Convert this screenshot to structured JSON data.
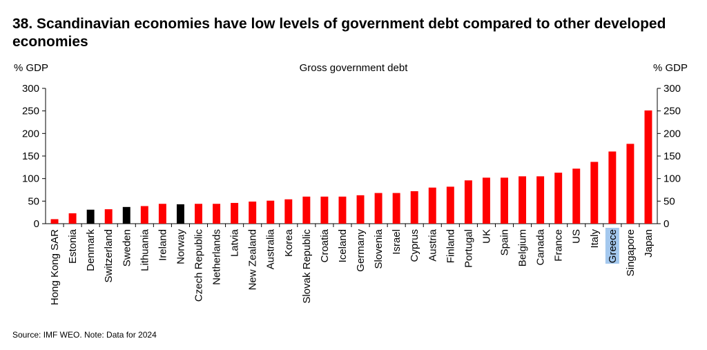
{
  "title": "38. Scandinavian economies have low levels of government debt compared to other developed economies",
  "source": "Source: IMF WEO. Note: Data for 2024",
  "chart_data": {
    "type": "bar",
    "title": "Gross government debt",
    "ylabel_left": "% GDP",
    "ylabel_right": "% GDP",
    "ylim": [
      0,
      300
    ],
    "yticks": [
      0,
      50,
      100,
      150,
      200,
      250,
      300
    ],
    "grid": false,
    "categories": [
      "Hong Kong SAR",
      "Estonia",
      "Denmark",
      "Switzerland",
      "Sweden",
      "Lithuania",
      "Ireland",
      "Norway",
      "Czech Republic",
      "Netherlands",
      "Latvia",
      "New Zealand",
      "Australia",
      "Korea",
      "Slovak Republic",
      "Croatia",
      "Iceland",
      "Germany",
      "Slovenia",
      "Israel",
      "Cyprus",
      "Austria",
      "Finland",
      "Portugal",
      "UK",
      "Spain",
      "Belgium",
      "Canada",
      "France",
      "US",
      "Italy",
      "Greece",
      "Singapore",
      "Japan"
    ],
    "values": [
      10,
      23,
      31,
      32,
      37,
      39,
      44,
      43,
      44,
      44,
      46,
      49,
      51,
      54,
      60,
      60,
      60,
      63,
      68,
      68,
      72,
      80,
      82,
      96,
      102,
      102,
      105,
      105,
      113,
      122,
      137,
      160,
      177,
      251
    ],
    "bar_colors": [
      "#ff0000",
      "#ff0000",
      "#000000",
      "#ff0000",
      "#000000",
      "#ff0000",
      "#ff0000",
      "#000000",
      "#ff0000",
      "#ff0000",
      "#ff0000",
      "#ff0000",
      "#ff0000",
      "#ff0000",
      "#ff0000",
      "#ff0000",
      "#ff0000",
      "#ff0000",
      "#ff0000",
      "#ff0000",
      "#ff0000",
      "#ff0000",
      "#ff0000",
      "#ff0000",
      "#ff0000",
      "#ff0000",
      "#ff0000",
      "#ff0000",
      "#ff0000",
      "#ff0000",
      "#ff0000",
      "#ff0000",
      "#ff0000",
      "#ff0000"
    ],
    "highlighted_label": "Greece",
    "highlight_color": "#a4c8ee"
  }
}
